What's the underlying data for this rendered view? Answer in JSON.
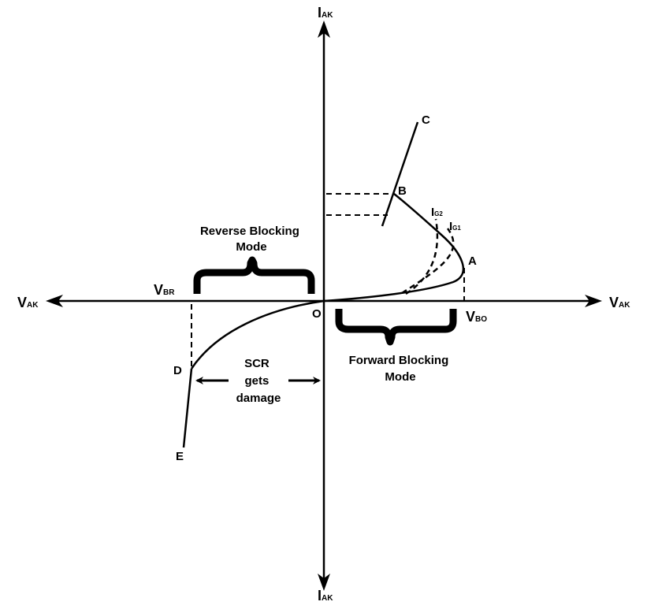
{
  "axes": {
    "y_top": {
      "main": "I",
      "sub": "AK"
    },
    "y_bottom": {
      "main": "I",
      "sub": "AK"
    },
    "x_left": {
      "main": "V",
      "sub": "AK"
    },
    "x_right": {
      "main": "V",
      "sub": "AK"
    }
  },
  "origin_label": "O",
  "points": {
    "A": "A",
    "B": "B",
    "C": "C",
    "D": "D",
    "E": "E"
  },
  "gate_currents": [
    {
      "main": "I",
      "sub": "G2"
    },
    {
      "main": "I",
      "sub": "G1"
    }
  ],
  "voltages": {
    "breakover": {
      "main": "V",
      "sub": "BO"
    },
    "breakdown": {
      "main": "V",
      "sub": "BR"
    }
  },
  "regions": {
    "reverse_blocking": [
      "Reverse Blocking",
      "Mode"
    ],
    "forward_blocking": [
      "Forward Blocking",
      "Mode"
    ],
    "damage": [
      "SCR",
      "gets",
      "damage"
    ]
  }
}
